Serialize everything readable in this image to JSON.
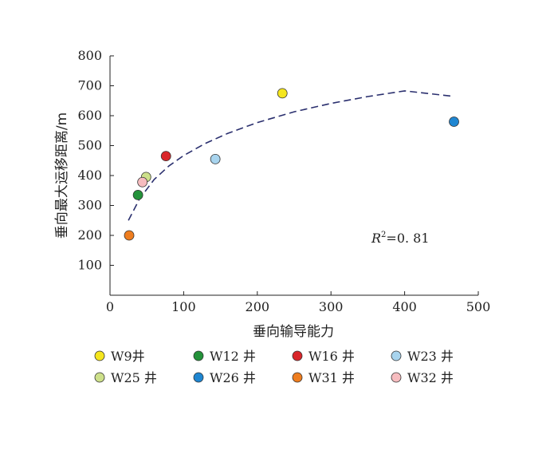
{
  "chart_data": {
    "type": "scatter",
    "title": "",
    "xlabel": "垂向输导能力",
    "ylabel": "垂向最大运移距离/m",
    "xlim": [
      0,
      500
    ],
    "ylim": [
      0,
      800
    ],
    "xticks": [
      "0",
      "100",
      "200",
      "300",
      "400",
      "500"
    ],
    "yticks": [
      "100",
      "200",
      "300",
      "400",
      "500",
      "600",
      "700",
      "800"
    ],
    "grid": false,
    "legend_position": "bottom",
    "series": [
      {
        "name": "W9井",
        "color": "#f5e61e",
        "x": [
          234
        ],
        "y": [
          675
        ]
      },
      {
        "name": "W12 井",
        "color": "#23923a",
        "x": [
          38
        ],
        "y": [
          335
        ]
      },
      {
        "name": "W16 井",
        "color": "#d9262a",
        "x": [
          76
        ],
        "y": [
          465
        ]
      },
      {
        "name": "W23 井",
        "color": "#a8d4ee",
        "x": [
          143
        ],
        "y": [
          455
        ]
      },
      {
        "name": "W25 井",
        "color": "#cde08a",
        "x": [
          49
        ],
        "y": [
          395
        ]
      },
      {
        "name": "W26 井",
        "color": "#1f86d1",
        "x": [
          467
        ],
        "y": [
          580
        ]
      },
      {
        "name": "W31 井",
        "color": "#ee7d1f",
        "x": [
          26
        ],
        "y": [
          200
        ]
      },
      {
        "name": "W32 井",
        "color": "#f6bcbf",
        "x": [
          44
        ],
        "y": [
          378
        ]
      }
    ],
    "trendline": {
      "style": "dashed",
      "color": "#2a2f6e",
      "x": [
        25,
        40,
        60,
        80,
        100,
        130,
        160,
        200,
        250,
        300,
        350,
        400,
        465
      ],
      "y": [
        250,
        322,
        387,
        432,
        467,
        508,
        541,
        577,
        613,
        641,
        664,
        683,
        665
      ]
    },
    "annotation": {
      "label": "R",
      "sup": "2",
      "value": "=0. 81"
    }
  }
}
